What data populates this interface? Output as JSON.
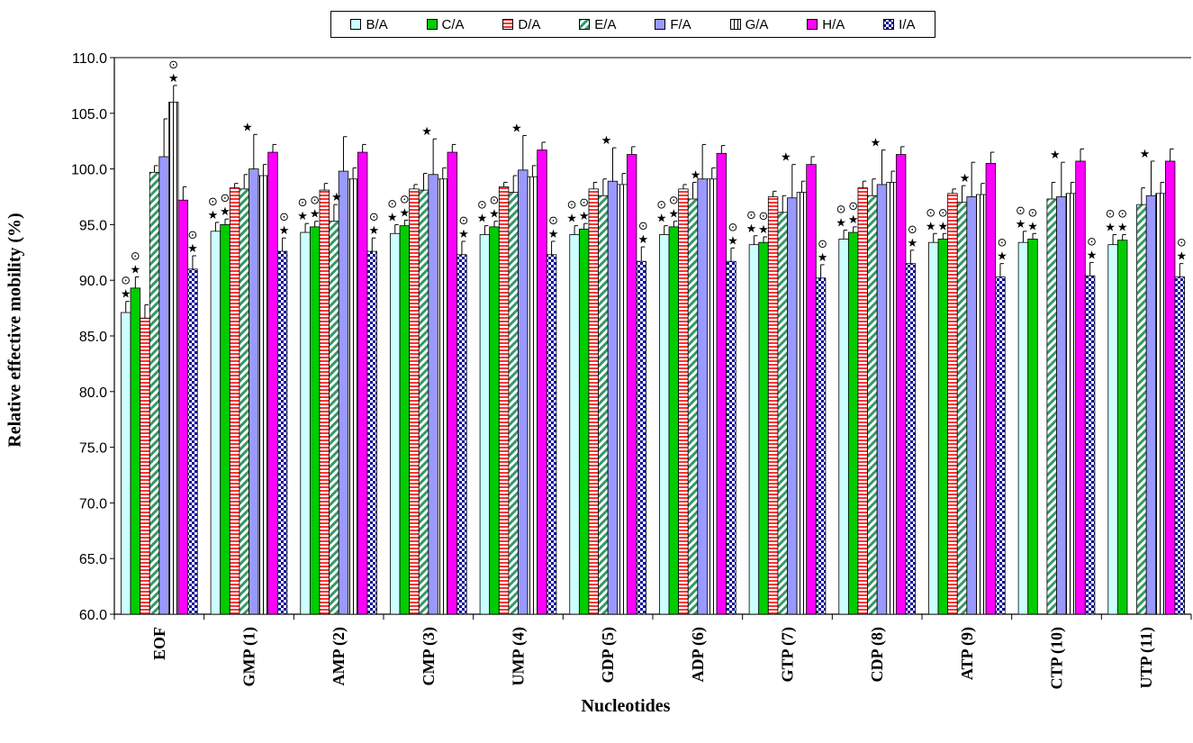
{
  "chart_data": {
    "type": "bar",
    "title": "",
    "xlabel": "Nucleotides",
    "ylabel": "Relative effective mobility (%)",
    "ylim": [
      60,
      110
    ],
    "yticks": [
      "60.0",
      "65.0",
      "70.0",
      "75.0",
      "80.0",
      "85.0",
      "90.0",
      "95.0",
      "100.0",
      "105.0",
      "110.0"
    ],
    "grid": false,
    "legend_position": "top-center",
    "categories": [
      "EOF",
      "GMP (1)",
      "AMP (2)",
      "CMP (3)",
      "UMP (4)",
      "GDP (5)",
      "ADP (6)",
      "GTP (7)",
      "CDP (8)",
      "ATP (9)",
      "CTP (10)",
      "UTP (11)"
    ],
    "series": [
      {
        "name": "B/A",
        "color": "#ccffff",
        "pattern": "solid",
        "values": [
          87.1,
          94.4,
          94.3,
          94.2,
          94.1,
          94.1,
          94.1,
          93.2,
          93.7,
          93.4,
          93.4,
          93.2
        ],
        "errors": [
          1.0,
          0.8,
          0.8,
          0.8,
          0.8,
          0.8,
          0.8,
          0.8,
          0.8,
          0.8,
          1.0,
          0.9
        ]
      },
      {
        "name": "C/A",
        "color": "#00cc00",
        "pattern": "solid",
        "values": [
          89.3,
          95.0,
          94.8,
          94.9,
          94.8,
          94.6,
          94.8,
          93.4,
          94.3,
          93.7,
          93.7,
          93.6
        ],
        "errors": [
          1.0,
          0.5,
          0.5,
          0.5,
          0.5,
          0.5,
          0.5,
          0.5,
          0.5,
          0.5,
          0.5,
          0.5
        ]
      },
      {
        "name": "D/A",
        "color": "#ff3333",
        "pattern": "hlines",
        "values": [
          86.6,
          98.3,
          98.1,
          98.2,
          98.4,
          98.2,
          98.2,
          97.5,
          98.3,
          97.8,
          null,
          null
        ],
        "errors": [
          1.2,
          0.4,
          0.6,
          0.4,
          0.4,
          0.6,
          0.4,
          0.5,
          0.6,
          0.4,
          0,
          0
        ]
      },
      {
        "name": "E/A",
        "color": "#339966",
        "pattern": "diag",
        "values": [
          99.7,
          98.2,
          95.3,
          98.1,
          97.9,
          97.6,
          97.3,
          96.1,
          97.6,
          97.0,
          97.3,
          96.8
        ],
        "errors": [
          0.6,
          1.3,
          1.5,
          1.5,
          1.5,
          1.5,
          1.5,
          1.5,
          1.5,
          1.5,
          1.5,
          1.5
        ]
      },
      {
        "name": "F/A",
        "color": "#9999ff",
        "pattern": "solid",
        "values": [
          101.1,
          100.0,
          99.8,
          99.5,
          99.9,
          98.9,
          99.1,
          97.4,
          98.6,
          97.5,
          97.5,
          97.6
        ],
        "errors": [
          3.4,
          3.1,
          3.1,
          3.2,
          3.1,
          3.0,
          3.1,
          3.0,
          3.1,
          3.1,
          3.1,
          3.1
        ]
      },
      {
        "name": "G/A",
        "color": "#ffffff",
        "pattern": "vlines",
        "values": [
          106.0,
          99.4,
          99.1,
          99.1,
          99.3,
          98.6,
          99.1,
          97.9,
          98.8,
          97.7,
          97.8,
          97.8
        ],
        "errors": [
          1.5,
          1.0,
          1.0,
          1.0,
          1.0,
          1.0,
          1.0,
          1.0,
          1.0,
          1.0,
          1.0,
          1.0
        ]
      },
      {
        "name": "H/A",
        "color": "#ff00ff",
        "pattern": "solid",
        "values": [
          97.2,
          101.5,
          101.5,
          101.5,
          101.7,
          101.3,
          101.4,
          100.4,
          101.3,
          100.5,
          100.7,
          100.7
        ],
        "errors": [
          1.2,
          0.7,
          0.7,
          0.7,
          0.7,
          0.7,
          0.7,
          0.7,
          0.7,
          1.0,
          1.1,
          1.1
        ]
      },
      {
        "name": "I/A",
        "color": "#000099",
        "pattern": "checker",
        "values": [
          91.0,
          92.6,
          92.6,
          92.3,
          92.3,
          91.7,
          91.7,
          90.2,
          91.5,
          90.3,
          90.4,
          90.3
        ],
        "errors": [
          1.2,
          1.2,
          1.2,
          1.2,
          1.2,
          1.3,
          1.2,
          1.2,
          1.2,
          1.2,
          1.2,
          1.2
        ]
      }
    ],
    "annotations": [
      "★",
      "⊙"
    ]
  }
}
